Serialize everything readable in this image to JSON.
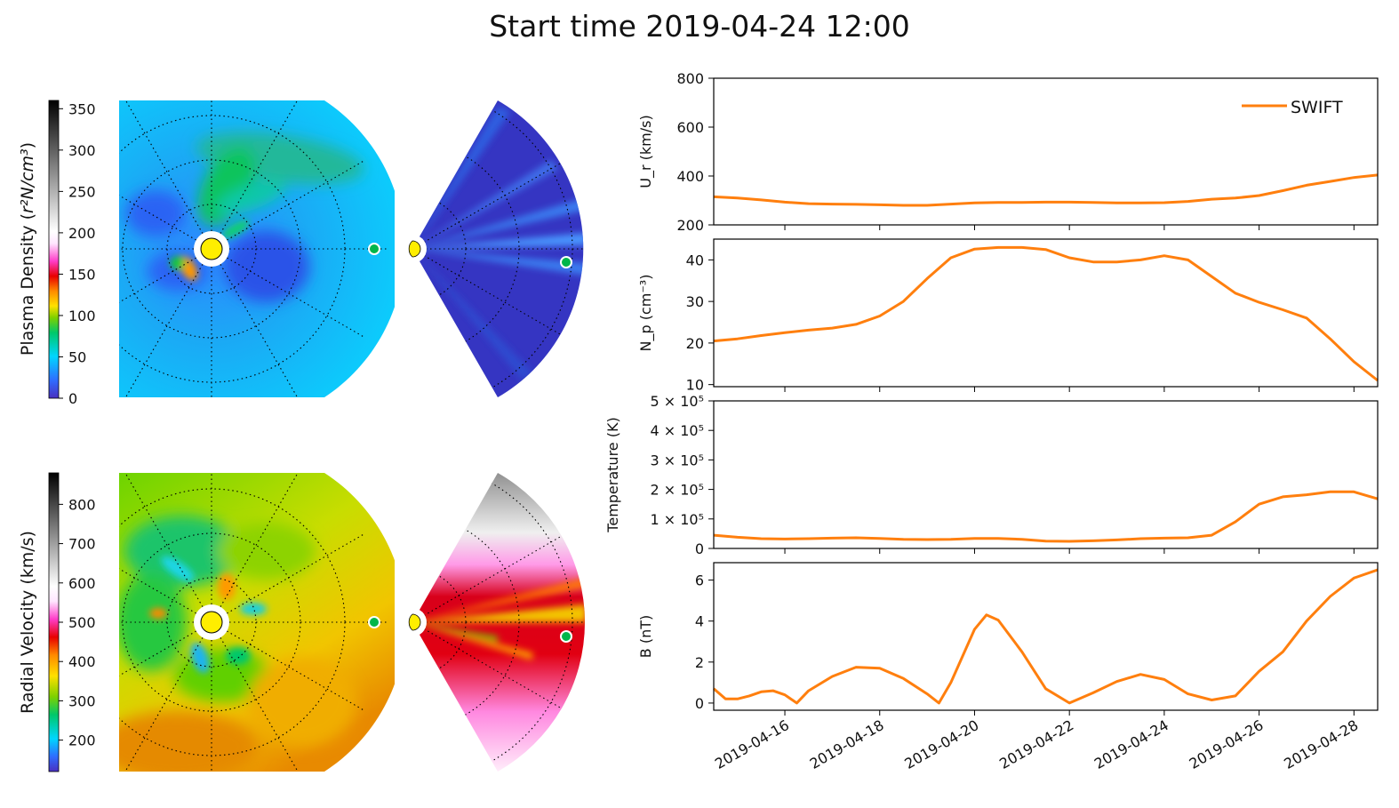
{
  "title": "Start time 2019-04-24 12:00",
  "colorbars": {
    "density": {
      "label_text": "Plasma Density (",
      "label_math": "r²N/cm³",
      "label_close": ")",
      "ticks": [
        "0",
        "50",
        "100",
        "150",
        "200",
        "250",
        "300",
        "350"
      ],
      "range": [
        0,
        360
      ]
    },
    "velocity": {
      "label": "Radial Velocity (km/s)",
      "ticks": [
        "200",
        "300",
        "400",
        "500",
        "600",
        "700",
        "800"
      ],
      "range": [
        120,
        880
      ]
    }
  },
  "chart_data": [
    {
      "type": "line",
      "panel": "Ur",
      "ylabel": "U_r (km/s)",
      "ylim": [
        200,
        800
      ],
      "yticks": [
        "200",
        "400",
        "600",
        "800"
      ],
      "legend": "top-right",
      "series": [
        {
          "name": "SWIFT",
          "color": "#ff7f0e",
          "x": [
            "2019-04-14 12:00",
            "2019-04-15 00:00",
            "2019-04-15 12:00",
            "2019-04-16 00:00",
            "2019-04-16 12:00",
            "2019-04-17 00:00",
            "2019-04-17 12:00",
            "2019-04-18 00:00",
            "2019-04-18 12:00",
            "2019-04-19 00:00",
            "2019-04-19 12:00",
            "2019-04-20 00:00",
            "2019-04-20 12:00",
            "2019-04-21 00:00",
            "2019-04-21 12:00",
            "2019-04-22 00:00",
            "2019-04-22 12:00",
            "2019-04-23 00:00",
            "2019-04-23 12:00",
            "2019-04-24 00:00",
            "2019-04-24 12:00",
            "2019-04-25 00:00",
            "2019-04-25 12:00",
            "2019-04-26 00:00",
            "2019-04-26 12:00",
            "2019-04-27 00:00",
            "2019-04-27 12:00",
            "2019-04-28 00:00",
            "2019-04-28 12:00"
          ],
          "y": [
            315,
            310,
            302,
            293,
            287,
            285,
            284,
            282,
            280,
            280,
            285,
            290,
            292,
            292,
            293,
            293,
            292,
            290,
            290,
            291,
            296,
            305,
            310,
            320,
            340,
            362,
            378,
            394,
            404
          ]
        }
      ]
    },
    {
      "type": "line",
      "panel": "Np",
      "ylabel": "N_p (cm⁻³)",
      "ylim": [
        9.5,
        45
      ],
      "yticks": [
        "10",
        "20",
        "30",
        "40"
      ],
      "series": [
        {
          "name": "SWIFT",
          "color": "#ff7f0e",
          "x": [
            "2019-04-14 12:00",
            "2019-04-15 00:00",
            "2019-04-15 12:00",
            "2019-04-16 00:00",
            "2019-04-16 12:00",
            "2019-04-17 00:00",
            "2019-04-17 12:00",
            "2019-04-18 00:00",
            "2019-04-18 12:00",
            "2019-04-19 00:00",
            "2019-04-19 12:00",
            "2019-04-20 00:00",
            "2019-04-20 12:00",
            "2019-04-21 00:00",
            "2019-04-21 12:00",
            "2019-04-22 00:00",
            "2019-04-22 12:00",
            "2019-04-23 00:00",
            "2019-04-23 12:00",
            "2019-04-24 00:00",
            "2019-04-24 12:00",
            "2019-04-25 00:00",
            "2019-04-25 12:00",
            "2019-04-26 00:00",
            "2019-04-26 12:00",
            "2019-04-27 00:00",
            "2019-04-27 12:00",
            "2019-04-28 00:00",
            "2019-04-28 12:00"
          ],
          "y": [
            20.5,
            21,
            21.8,
            22.5,
            23.1,
            23.6,
            24.5,
            26.5,
            30,
            35.5,
            40.5,
            42.6,
            43,
            43,
            42.5,
            40.5,
            39.5,
            39.5,
            40,
            41,
            40,
            36,
            32,
            29.8,
            28,
            26,
            21,
            15.5,
            11
          ]
        }
      ]
    },
    {
      "type": "line",
      "panel": "Temperature",
      "ylabel": "Temperature (K)",
      "ylim": [
        0,
        500000
      ],
      "yticks": [
        "0",
        "1 × 10⁵",
        "2 × 10⁵",
        "3 × 10⁵",
        "4 × 10⁵",
        "5 × 10⁵"
      ],
      "series": [
        {
          "name": "SWIFT",
          "color": "#ff7f0e",
          "x": [
            "2019-04-14 12:00",
            "2019-04-15 00:00",
            "2019-04-15 12:00",
            "2019-04-16 00:00",
            "2019-04-16 12:00",
            "2019-04-17 00:00",
            "2019-04-17 12:00",
            "2019-04-18 00:00",
            "2019-04-18 12:00",
            "2019-04-19 00:00",
            "2019-04-19 12:00",
            "2019-04-20 00:00",
            "2019-04-20 12:00",
            "2019-04-21 00:00",
            "2019-04-21 12:00",
            "2019-04-22 00:00",
            "2019-04-22 12:00",
            "2019-04-23 00:00",
            "2019-04-23 12:00",
            "2019-04-24 00:00",
            "2019-04-24 12:00",
            "2019-04-25 00:00",
            "2019-04-25 12:00",
            "2019-04-26 00:00",
            "2019-04-26 12:00",
            "2019-04-27 00:00",
            "2019-04-27 12:00",
            "2019-04-28 00:00",
            "2019-04-28 12:00"
          ],
          "y": [
            45000,
            38000,
            33000,
            32000,
            33000,
            35000,
            36000,
            34000,
            31000,
            30000,
            31000,
            34000,
            34000,
            31000,
            25000,
            24000,
            26000,
            29000,
            33000,
            35000,
            36000,
            45000,
            90000,
            150000,
            175000,
            182000,
            192000,
            192000,
            168000
          ]
        }
      ]
    },
    {
      "type": "line",
      "panel": "B",
      "ylabel": "B (nT)",
      "ylim": [
        -0.35,
        6.85
      ],
      "yticks": [
        "0",
        "2",
        "4",
        "6"
      ],
      "xlim": [
        "2019-04-14 12:00",
        "2019-04-28 12:00"
      ],
      "xticks": [
        "2019-04-16",
        "2019-04-18",
        "2019-04-20",
        "2019-04-22",
        "2019-04-24",
        "2019-04-26",
        "2019-04-28"
      ],
      "series": [
        {
          "name": "SWIFT",
          "color": "#ff7f0e",
          "x": [
            "2019-04-14 12:00",
            "2019-04-14 18:00",
            "2019-04-15 00:00",
            "2019-04-15 06:00",
            "2019-04-15 12:00",
            "2019-04-15 18:00",
            "2019-04-16 00:00",
            "2019-04-16 06:00",
            "2019-04-16 12:00",
            "2019-04-17 00:00",
            "2019-04-17 12:00",
            "2019-04-18 00:00",
            "2019-04-18 12:00",
            "2019-04-19 00:00",
            "2019-04-19 06:00",
            "2019-04-19 12:00",
            "2019-04-20 00:00",
            "2019-04-20 06:00",
            "2019-04-20 12:00",
            "2019-04-21 00:00",
            "2019-04-21 12:00",
            "2019-04-22 00:00",
            "2019-04-22 12:00",
            "2019-04-23 00:00",
            "2019-04-23 12:00",
            "2019-04-24 00:00",
            "2019-04-24 12:00",
            "2019-04-25 00:00",
            "2019-04-25 12:00",
            "2019-04-26 00:00",
            "2019-04-26 12:00",
            "2019-04-27 00:00",
            "2019-04-27 12:00",
            "2019-04-28 00:00",
            "2019-04-28 12:00"
          ],
          "y": [
            0.7,
            0.2,
            0.2,
            0.35,
            0.55,
            0.6,
            0.4,
            0.0,
            0.6,
            1.3,
            1.75,
            1.7,
            1.2,
            0.45,
            0.0,
            1.0,
            3.6,
            4.3,
            4.05,
            2.5,
            0.7,
            0.0,
            0.5,
            1.05,
            1.4,
            1.15,
            0.45,
            0.15,
            0.35,
            1.55,
            2.5,
            4.0,
            5.2,
            6.1,
            6.5
          ]
        }
      ]
    }
  ]
}
